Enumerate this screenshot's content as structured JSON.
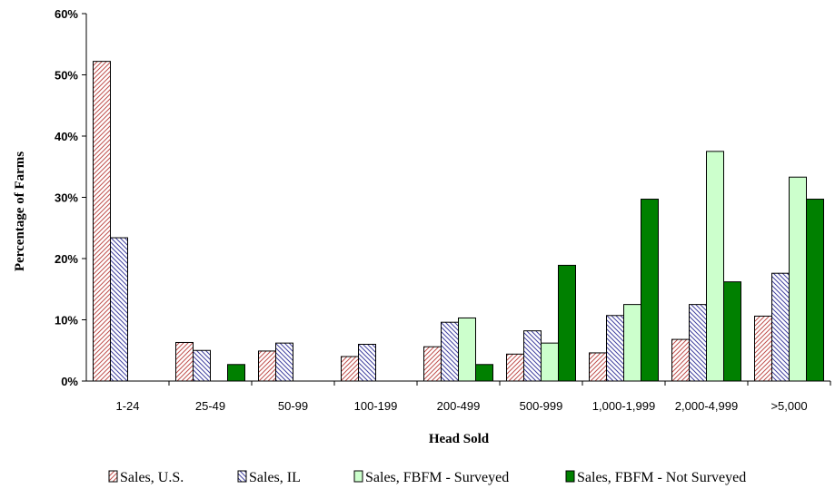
{
  "chart_data": {
    "type": "bar",
    "title": "",
    "xlabel": "Head Sold",
    "ylabel": "Percentage of Farms",
    "ylim": [
      0,
      60
    ],
    "yticks": [
      0,
      10,
      20,
      30,
      40,
      50,
      60
    ],
    "ytick_suffix": "%",
    "grid": false,
    "legend_position": "bottom",
    "categories": [
      "1-24",
      "25-49",
      "50-99",
      "100-199",
      "200-499",
      "500-999",
      "1,000-1,999",
      "2,000-4,999",
      ">5,000"
    ],
    "series": [
      {
        "name": "Sales, U.S.",
        "pattern": "hatch-diagonal",
        "color": "#c0504d",
        "values": [
          52.2,
          6.3,
          4.9,
          4.0,
          5.6,
          4.4,
          4.6,
          6.8,
          10.6
        ]
      },
      {
        "name": "Sales, IL",
        "pattern": "hatch-diagonal-reverse",
        "color": "#4040a0",
        "values": [
          23.4,
          5.0,
          6.2,
          6.0,
          9.6,
          8.2,
          10.7,
          12.5,
          17.6
        ]
      },
      {
        "name": "Sales, FBFM - Surveyed",
        "pattern": "solid",
        "color": "#ccffcc",
        "values": [
          0,
          0,
          0,
          0,
          10.3,
          6.2,
          12.5,
          37.5,
          33.3
        ]
      },
      {
        "name": "Sales, FBFM - Not Surveyed",
        "pattern": "solid",
        "color": "#008000",
        "values": [
          0,
          2.7,
          0,
          0,
          2.7,
          18.9,
          29.7,
          16.2,
          29.7
        ]
      }
    ]
  }
}
